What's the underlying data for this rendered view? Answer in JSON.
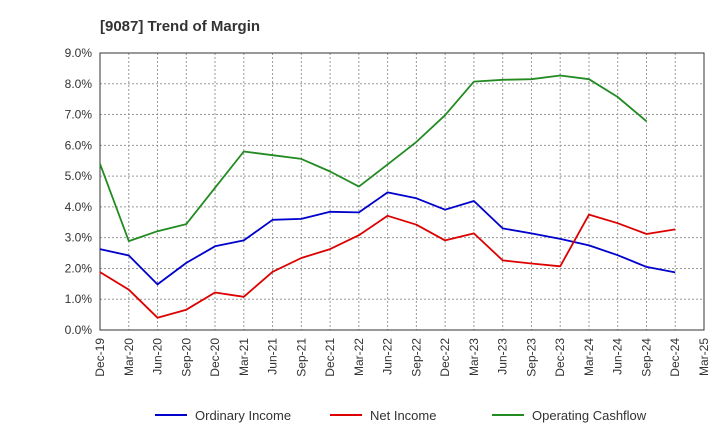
{
  "chart_data": {
    "type": "line",
    "title": "[9087]  Trend of Margin",
    "xlabel": "",
    "ylabel": "",
    "ylim": [
      0,
      9
    ],
    "y_ticks": [
      "0.0%",
      "1.0%",
      "2.0%",
      "3.0%",
      "4.0%",
      "5.0%",
      "6.0%",
      "7.0%",
      "8.0%",
      "9.0%"
    ],
    "categories": [
      "Dec-19",
      "Mar-20",
      "Jun-20",
      "Sep-20",
      "Dec-20",
      "Mar-21",
      "Jun-21",
      "Sep-21",
      "Dec-21",
      "Mar-22",
      "Jun-22",
      "Sep-22",
      "Dec-22",
      "Mar-23",
      "Jun-23",
      "Sep-23",
      "Dec-23",
      "Mar-24",
      "Jun-24",
      "Sep-24",
      "Dec-24",
      "Mar-25"
    ],
    "grid": true,
    "legend_position": "bottom",
    "series": [
      {
        "name": "Ordinary Income",
        "color": "#0000cc",
        "values": [
          2.63,
          2.42,
          1.48,
          2.18,
          2.72,
          2.91,
          3.58,
          3.61,
          3.84,
          3.82,
          4.47,
          4.28,
          3.91,
          4.19,
          3.3,
          3.14,
          2.96,
          2.75,
          2.43,
          2.05,
          1.87,
          null
        ]
      },
      {
        "name": "Net Income",
        "color": "#dd0000",
        "values": [
          1.88,
          1.31,
          0.4,
          0.66,
          1.22,
          1.08,
          1.89,
          2.34,
          2.63,
          3.08,
          3.71,
          3.42,
          2.91,
          3.14,
          2.26,
          2.16,
          2.07,
          3.75,
          3.47,
          3.12,
          3.27,
          null
        ]
      },
      {
        "name": "Operating Cashflow",
        "color": "#228b22",
        "values": [
          5.4,
          2.89,
          3.21,
          3.44,
          4.62,
          5.8,
          5.68,
          5.56,
          5.15,
          4.66,
          5.38,
          6.11,
          6.98,
          8.07,
          8.13,
          8.15,
          8.27,
          8.15,
          7.57,
          6.78,
          null,
          null
        ]
      }
    ]
  }
}
